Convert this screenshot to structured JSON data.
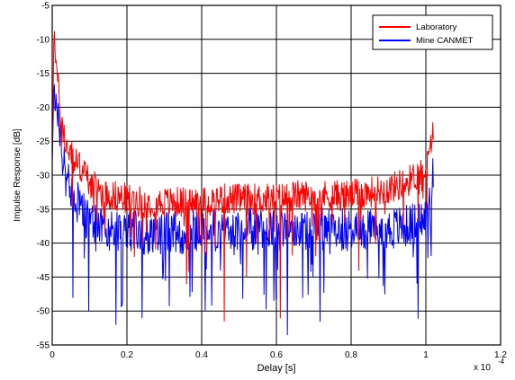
{
  "chart_data": {
    "type": "line",
    "title": "",
    "xlabel": "Delay [s]",
    "ylabel": "Impulse Response [dB]",
    "x_multiplier": "x 10",
    "x_multiplier_exp": "-4",
    "xlim": [
      0,
      0.00012
    ],
    "ylim": [
      -55,
      -5
    ],
    "x_ticks": [
      0,
      2e-05,
      4e-05,
      6e-05,
      8e-05,
      0.0001,
      0.00012
    ],
    "x_tick_labels": [
      "0",
      "0.2",
      "0.4",
      "0.6",
      "0.8",
      "1",
      "1.2"
    ],
    "y_ticks": [
      -55,
      -50,
      -45,
      -40,
      -35,
      -30,
      -25,
      -20,
      -15,
      -10,
      -5
    ],
    "y_tick_labels": [
      "-55",
      "-50",
      "-45",
      "-40",
      "-35",
      "-30",
      "-25",
      "-20",
      "-15",
      "-10",
      "-5"
    ],
    "grid": true,
    "legend_position": "top-right",
    "series": [
      {
        "name": "Laboratory",
        "color": "#ff0000",
        "x": [
          0,
          5e-07,
          1e-06,
          2e-06,
          3e-06,
          4e-06,
          6e-06,
          8e-06,
          1e-05,
          1.3e-05,
          1.6e-05,
          2e-05,
          2.5e-05,
          3e-05,
          3.5e-05,
          4e-05,
          4.5e-05,
          5e-05,
          5.5e-05,
          6e-05,
          6.5e-05,
          7e-05,
          7.5e-05,
          8e-05,
          8.5e-05,
          9e-05,
          9.5e-05,
          9.75e-05,
          0.0001,
          0.000101,
          0.0001015,
          0.000102
        ],
        "y": [
          -28,
          -8,
          -13,
          -20,
          -24,
          -26,
          -28,
          -29,
          -31,
          -32.5,
          -33,
          -33.5,
          -34,
          -34,
          -34,
          -34,
          -33.5,
          -33.5,
          -33.5,
          -33.5,
          -33,
          -33,
          -33,
          -33,
          -32.5,
          -32,
          -31,
          -30,
          -29,
          -27,
          -25,
          -22.5
        ],
        "noise": 2.3,
        "dips": [
          [
            3.6e-05,
            -46
          ],
          [
            4.6e-05,
            -51.5
          ],
          [
            6.1e-05,
            -51
          ],
          [
            5.2e-05,
            -45
          ],
          [
            8.2e-05,
            -44
          ]
        ]
      },
      {
        "name": "Mine CANMET",
        "color": "#0000ff",
        "x": [
          0,
          5e-07,
          1e-06,
          2e-06,
          3e-06,
          4e-06,
          6e-06,
          8e-06,
          1e-05,
          1.3e-05,
          1.6e-05,
          2e-05,
          2.5e-05,
          3e-05,
          3.5e-05,
          4e-05,
          4.5e-05,
          5e-05,
          5.5e-05,
          6e-05,
          6.5e-05,
          7e-05,
          7.5e-05,
          8e-05,
          8.5e-05,
          9e-05,
          9.5e-05,
          9.75e-05,
          0.0001,
          0.000101,
          0.0001015,
          0.000102
        ],
        "y": [
          -28,
          -16,
          -20,
          -24,
          -28,
          -31,
          -33,
          -35,
          -37,
          -37.5,
          -38,
          -38,
          -38.5,
          -38.5,
          -38.5,
          -38,
          -38,
          -38,
          -38,
          -38,
          -38,
          -38,
          -38,
          -38,
          -38,
          -38,
          -37.5,
          -37,
          -36.5,
          -33,
          -31,
          -30
        ],
        "noise": 3.2,
        "dips": [
          [
            5.5e-06,
            -48
          ],
          [
            9.8e-06,
            -50
          ],
          [
            1.7e-05,
            -52
          ],
          [
            2.4e-05,
            -51
          ],
          [
            4.1e-05,
            -50
          ],
          [
            6.3e-05,
            -53.5
          ],
          [
            6.7e-05,
            -48
          ]
        ]
      }
    ]
  }
}
